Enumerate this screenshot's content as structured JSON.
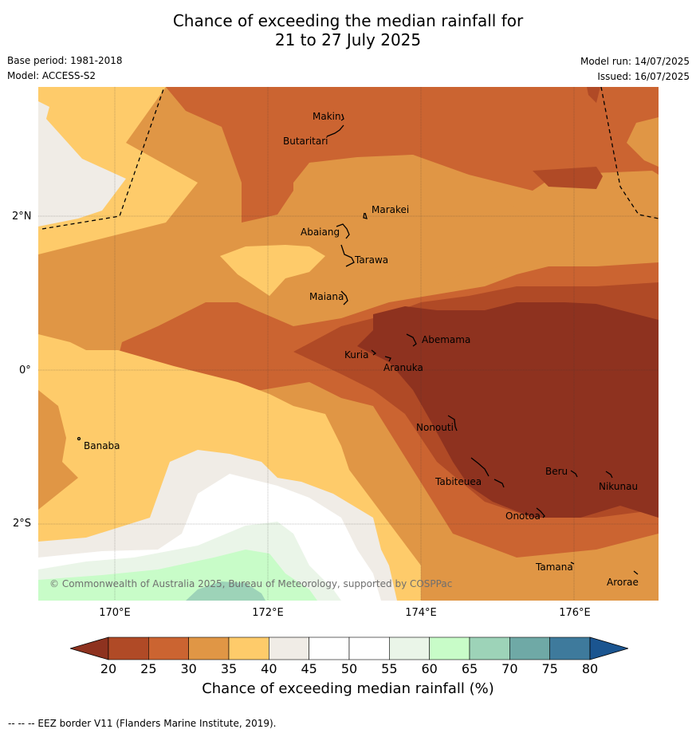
{
  "title_line1": "Chance of exceeding the median rainfall for",
  "title_line2": "21 to 27 July 2025",
  "base_period": "Base period: 1981-2018",
  "model": "Model: ACCESS-S2",
  "model_run": "Model run: 14/07/2025",
  "issued": "Issued: 16/07/2025",
  "lat_labels": [
    "2°N",
    "0°",
    "2°S"
  ],
  "lon_labels": [
    "170°E",
    "172°E",
    "174°E",
    "176°E"
  ],
  "places": {
    "makin": "Makin",
    "butaritari": "Butaritari",
    "marakei": "Marakei",
    "abaiang": "Abaiang",
    "tarawa": "Tarawa",
    "maiana": "Maiana",
    "abemama": "Abemama",
    "kuria": "Kuria",
    "aranuka": "Aranuka",
    "nonouti": "Nonouti",
    "banaba": "Banaba",
    "beru": "Beru",
    "nikunau": "Nikunau",
    "tabiteuea": "Tabiteuea",
    "onotoa": "Onotoa",
    "tamana": "Tamana",
    "arorae": "Arorae"
  },
  "copyright": "© Commonwealth of Australia 2025, Bureau of Meteorology, supported by COSPPac",
  "colorbar": {
    "ticks": [
      "20",
      "25",
      "30",
      "35",
      "40",
      "45",
      "50",
      "55",
      "60",
      "65",
      "70",
      "75",
      "80"
    ],
    "colors": [
      "#b04a26",
      "#cb6431",
      "#e09645",
      "#fecb6a",
      "#f0ece6",
      "#ffffff",
      "#ffffff",
      "#eaf5e8",
      "#c8fcc8",
      "#9dd3b8",
      "#6fa9a6",
      "#3e7a9c",
      "#1b5590"
    ],
    "under_color": "#8e321f",
    "over_color": "#1b5590",
    "label": "Chance of exceeding median rainfall (%)"
  },
  "footer": "--  --  -- EEZ border V11 (Flanders Marine Institute, 2019)."
}
